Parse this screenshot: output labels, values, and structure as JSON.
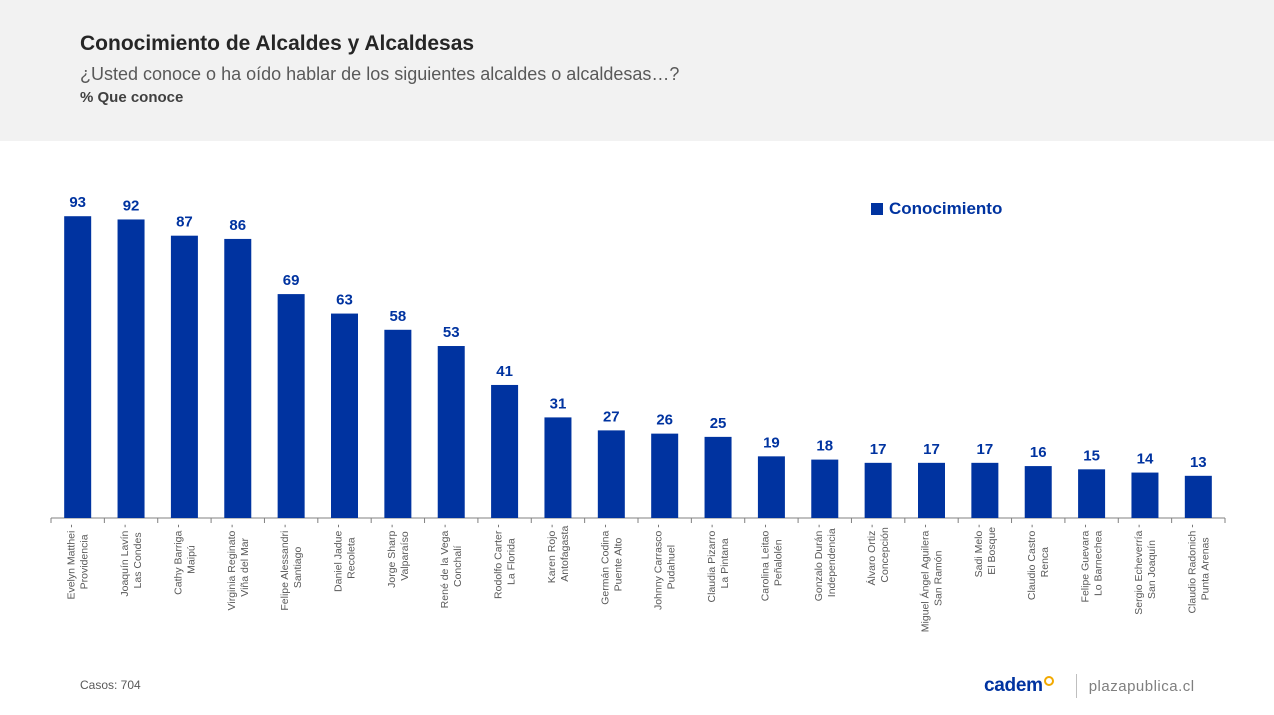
{
  "header": {
    "title": "Conocimiento de Alcaldes y Alcaldesas",
    "subtitle": "¿Usted conoce o ha oído hablar de los siguientes alcaldes o alcaldesas…?",
    "measure": "% Que conoce"
  },
  "legend": {
    "label": "Conocimiento"
  },
  "footer": {
    "cases": "Casos: 704",
    "logo": "cadem",
    "site": "plazapublica.cl"
  },
  "colors": {
    "bar": "#0033a0",
    "label": "#0033a0",
    "axis": "#808080",
    "tick_text": "#595959"
  },
  "chart_data": {
    "type": "bar",
    "categories": [
      [
        "Evelyn Matthei -",
        "Providencia"
      ],
      [
        "Joaquín Lavín -",
        "Las Condes"
      ],
      [
        "Cathy Barriga -",
        "Maipú"
      ],
      [
        "Virginia Reginato -",
        "Viña del Mar"
      ],
      [
        "Felipe Alessandri -",
        "Santiago"
      ],
      [
        "Daniel Jadue -",
        "Recoleta"
      ],
      [
        "Jorge Sharp -",
        "Valparaíso"
      ],
      [
        "René de la Vega -",
        "Conchalí"
      ],
      [
        "Rodolfo Carter -",
        "La Florida"
      ],
      [
        "Karen Rojo -",
        "Antofagasta"
      ],
      [
        "Germán Codina -",
        "Puente Alto"
      ],
      [
        "Johnny Carrasco -",
        "Pudahuel"
      ],
      [
        "Claudia Pizarro -",
        "La Pintana"
      ],
      [
        "Carolina Leitao -",
        "Peñalolén"
      ],
      [
        "Gonzalo Durán -",
        "Independencia"
      ],
      [
        "Álvaro Ortiz -",
        "Concepción"
      ],
      [
        "Miguel Ángel Aguilera -",
        "San Ramón"
      ],
      [
        "Sadi Melo -",
        "El Bosque"
      ],
      [
        "Claudio Castro -",
        "Renca"
      ],
      [
        "Felipe Guevara -",
        "Lo Barnechea"
      ],
      [
        "Sergio Echeverría -",
        "San Joaquín"
      ],
      [
        "Claudio Radonich -",
        "Punta Arenas"
      ]
    ],
    "series": [
      {
        "name": "Conocimiento",
        "values": [
          93,
          92,
          87,
          86,
          69,
          63,
          58,
          53,
          41,
          31,
          27,
          26,
          25,
          19,
          18,
          17,
          17,
          17,
          16,
          15,
          14,
          13
        ]
      }
    ],
    "ylim": [
      0,
      100
    ],
    "grid": false,
    "legend_position": "top-right",
    "data_labels": true
  }
}
